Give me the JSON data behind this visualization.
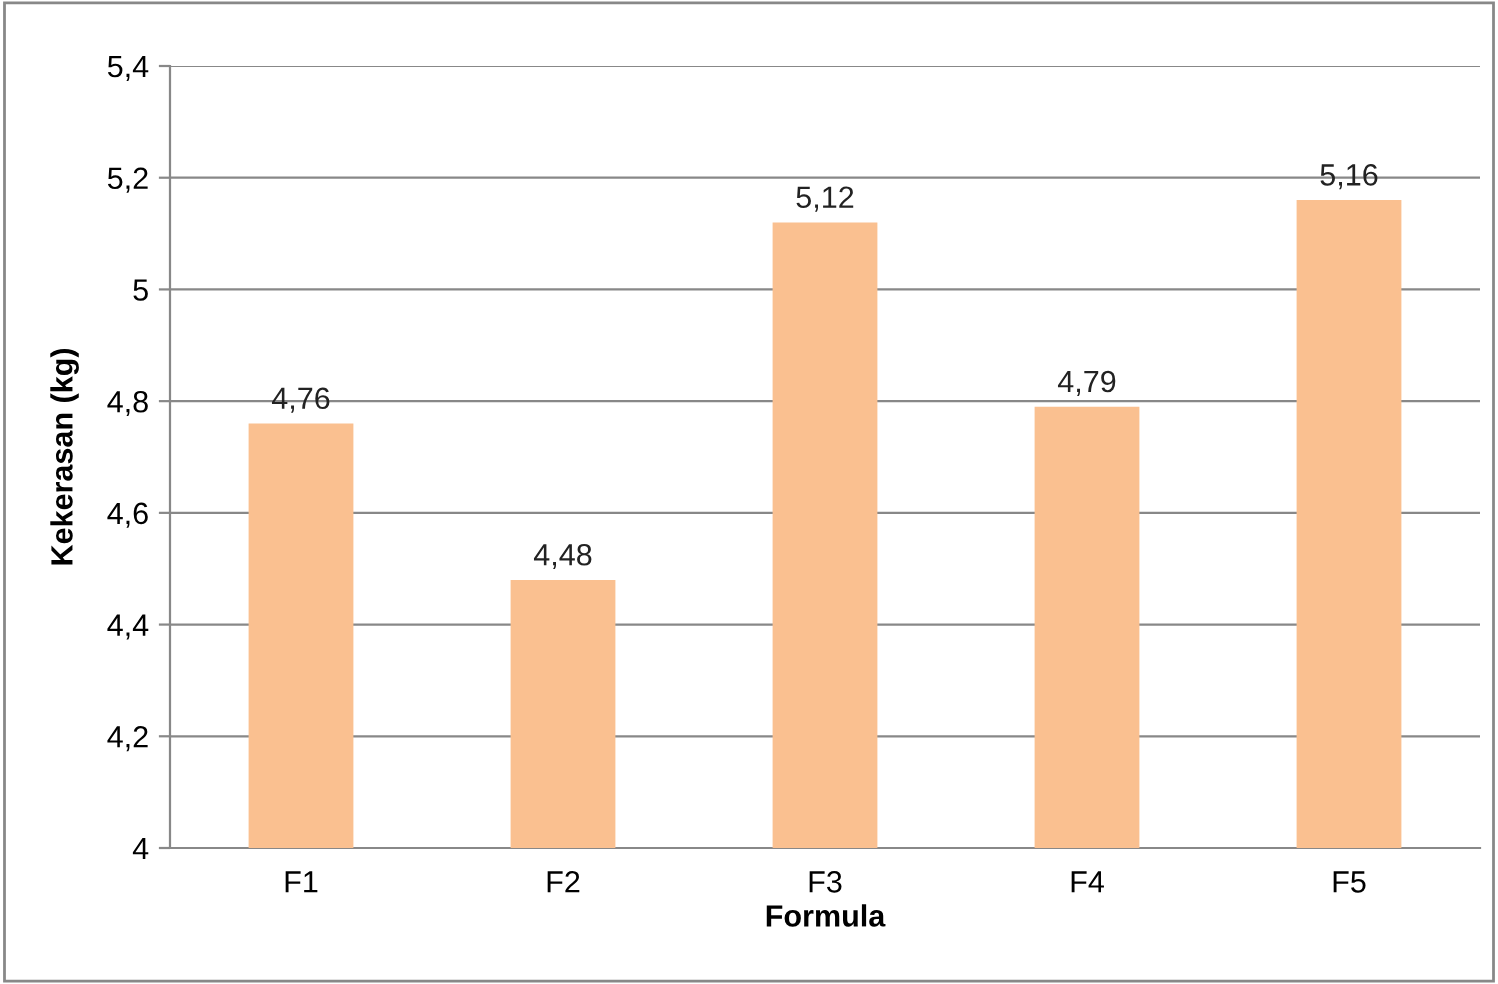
{
  "chart_data": {
    "type": "bar",
    "xlabel": "Formula",
    "ylabel": "Kekerasan (kg)",
    "categories": [
      "F1",
      "F2",
      "F3",
      "F4",
      "F5"
    ],
    "values": [
      4.76,
      4.48,
      5.12,
      4.79,
      5.16
    ],
    "value_labels": [
      "4,76",
      "4,48",
      "5,12",
      "4,79",
      "5,16"
    ],
    "color": "#fac090",
    "ylim": [
      4,
      5.4
    ],
    "yticks": [
      {
        "value": 4,
        "label": "4"
      },
      {
        "value": 4.2,
        "label": "4,2"
      },
      {
        "value": 4.4,
        "label": "4,4"
      },
      {
        "value": 4.6,
        "label": "4,6"
      },
      {
        "value": 4.8,
        "label": "4,8"
      },
      {
        "value": 5,
        "label": "5"
      },
      {
        "value": 5.2,
        "label": "5,2"
      },
      {
        "value": 5.4,
        "label": "5,4"
      }
    ],
    "grid": "y",
    "legend": false
  }
}
